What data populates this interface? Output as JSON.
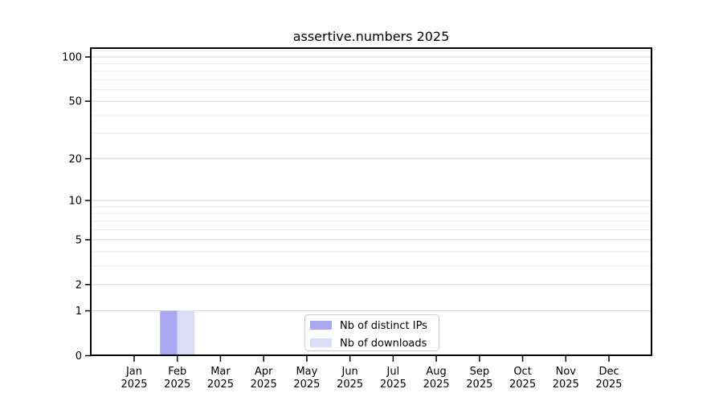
{
  "title": "assertive.numbers 2025",
  "chart_data": {
    "type": "bar",
    "title": "assertive.numbers 2025",
    "x_ticks": [
      {
        "month": "Jan",
        "year": "2025"
      },
      {
        "month": "Feb",
        "year": "2025"
      },
      {
        "month": "Mar",
        "year": "2025"
      },
      {
        "month": "Apr",
        "year": "2025"
      },
      {
        "month": "May",
        "year": "2025"
      },
      {
        "month": "Jun",
        "year": "2025"
      },
      {
        "month": "Jul",
        "year": "2025"
      },
      {
        "month": "Aug",
        "year": "2025"
      },
      {
        "month": "Sep",
        "year": "2025"
      },
      {
        "month": "Oct",
        "year": "2025"
      },
      {
        "month": "Nov",
        "year": "2025"
      },
      {
        "month": "Dec",
        "year": "2025"
      }
    ],
    "series": [
      {
        "name": "Nb of distinct IPs",
        "color": "#a8a8f0",
        "values": [
          0,
          1,
          0,
          0,
          0,
          0,
          0,
          0,
          0,
          0,
          0,
          0
        ]
      },
      {
        "name": "Nb of downloads",
        "color": "#dcdcf8",
        "values": [
          0,
          1,
          0,
          0,
          0,
          0,
          0,
          0,
          0,
          0,
          0,
          0
        ]
      }
    ],
    "yscale": "log1p",
    "ylim": [
      0,
      112
    ],
    "y_major_ticks": [
      100,
      50,
      20,
      10,
      5,
      2,
      1,
      0
    ],
    "y_minor_ticks": [
      110,
      90,
      80,
      70,
      60,
      40,
      30,
      9,
      8,
      7,
      6,
      4,
      3
    ],
    "grid": true,
    "legend_position": "lower center"
  },
  "style": {
    "background": "#ffffff",
    "axis_color": "#000000",
    "text_color": "#000000",
    "major_grid_color": "#d3d3d3",
    "minor_grid_color": "#ececec",
    "legend_border_color": "#cccccc",
    "legend_background": "#ffffff"
  }
}
